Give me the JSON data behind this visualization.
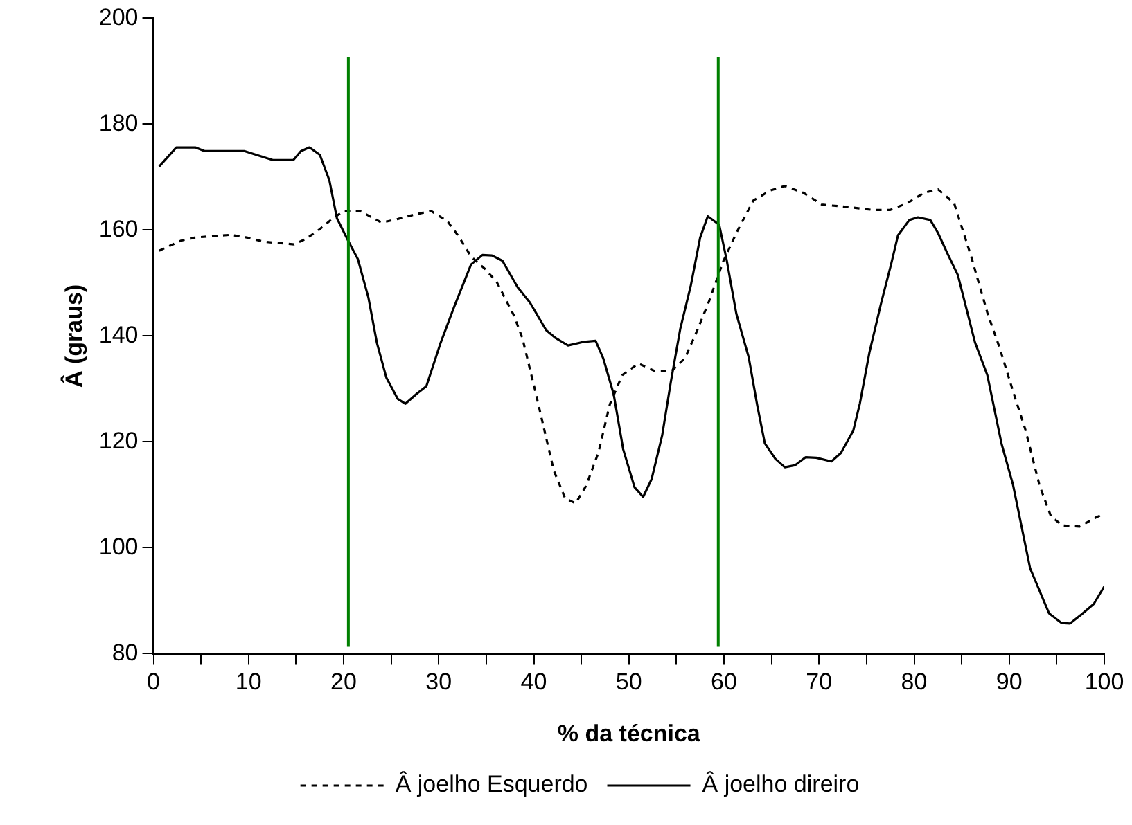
{
  "chart_data": {
    "type": "line",
    "xlabel": "% da técnica",
    "ylabel": "Â (graus)",
    "xlim": [
      0,
      100
    ],
    "ylim": [
      80,
      200
    ],
    "xticks": [
      0,
      {
        "value": 5,
        "label": null
      },
      10,
      {
        "value": 15,
        "label": null
      },
      20,
      {
        "value": 25,
        "label": null
      },
      30,
      {
        "value": 35,
        "label": null
      },
      40,
      {
        "value": 45,
        "label": null
      },
      50,
      {
        "value": 55,
        "label": null
      },
      60,
      {
        "value": 65,
        "label": null
      },
      70,
      {
        "value": 75,
        "label": null
      },
      80,
      {
        "value": 85,
        "label": null
      },
      90,
      {
        "value": 95,
        "label": null
      },
      100
    ],
    "yticks": [
      80,
      100,
      120,
      140,
      160,
      180,
      200
    ],
    "grid": false,
    "legend": "bottom",
    "marker": "none",
    "ref_lines": [
      {
        "axis": "x",
        "value": 20.5,
        "color": "#008000"
      },
      {
        "axis": "x",
        "value": 59.4,
        "color": "#008000"
      }
    ],
    "series": [
      {
        "name": "Â joelho Esquerdo",
        "color": "#000000",
        "line_style": "dashed",
        "x": [
          0.6,
          2.9,
          4.4,
          8.1,
          9.8,
          11.6,
          14.8,
          16,
          17.3,
          18.8,
          20,
          21.7,
          24,
          25.7,
          27.4,
          29.2,
          30.9,
          32.1,
          33.4,
          34.9,
          36.1,
          37.9,
          38.8,
          40.1,
          41.1,
          42.1,
          43.3,
          44.4,
          45.5,
          46.8,
          48,
          49.3,
          51,
          52.7,
          54.5,
          55.9,
          57.2,
          58.4,
          59.9,
          61.4,
          63.1,
          64.9,
          66.4,
          68.4,
          70.3,
          72.8,
          75.6,
          77.5,
          79.3,
          81,
          82.5,
          84.2,
          86,
          87.7,
          89,
          90.5,
          91.7,
          93.2,
          94.4,
          95.6,
          97.4,
          99.1,
          99.6
        ],
        "values": [
          156.1,
          158,
          158.6,
          159.1,
          158.6,
          157.8,
          157.3,
          158.3,
          159.9,
          162.1,
          163.6,
          163.6,
          161.4,
          162.1,
          162.9,
          163.6,
          161.7,
          158.8,
          155,
          152.6,
          150.2,
          143.9,
          139.6,
          130,
          122.3,
          114.6,
          109.3,
          108.4,
          111.7,
          118,
          127.1,
          132.6,
          134.8,
          133.4,
          133.4,
          135.8,
          141.1,
          146.4,
          154,
          159.8,
          165.6,
          167.5,
          168.3,
          167,
          164.8,
          164.4,
          163.8,
          163.8,
          165.1,
          167,
          167.7,
          165.1,
          155,
          144.4,
          137.7,
          129,
          122.3,
          111.7,
          105.9,
          104.2,
          104,
          105.7,
          106.1
        ]
      },
      {
        "name": "Â joelho direiro",
        "color": "#000000",
        "line_style": "solid",
        "x": [
          0.6,
          2.4,
          4.4,
          5.4,
          9.6,
          12.6,
          14.7,
          15.5,
          16.4,
          17.5,
          18.5,
          19.3,
          20.5,
          21.5,
          22.6,
          23.5,
          24.5,
          25.7,
          26.5,
          27.7,
          28.7,
          30.2,
          31.6,
          33.4,
          34.6,
          35.6,
          36.7,
          38.3,
          39.6,
          41.3,
          42.3,
          43.6,
          45.3,
          46.5,
          47.3,
          48.4,
          49.4,
          50.6,
          51.5,
          52.4,
          53.5,
          54.4,
          55.4,
          56.5,
          57.5,
          58.3,
          59.5,
          60.3,
          61.3,
          62.6,
          63.5,
          64.3,
          65.4,
          66.4,
          67.5,
          68.6,
          69.7,
          71.3,
          72.3,
          73.6,
          74.3,
          75.3,
          76.5,
          77.6,
          78.3,
          79.5,
          80.4,
          81.7,
          82.5,
          83.5,
          84.6,
          86.4,
          87.7,
          89.2,
          90.4,
          92.2,
          94.2,
          95.5,
          96.4,
          97.6,
          98.9,
          100
        ],
        "values": [
          172,
          175.6,
          175.6,
          174.9,
          174.9,
          173.2,
          173.2,
          174.9,
          175.6,
          174.2,
          169.4,
          162.2,
          157.9,
          154.5,
          147.3,
          138.7,
          132.1,
          128.1,
          127.2,
          129.1,
          130.5,
          138.7,
          145.4,
          153.5,
          155.3,
          155.2,
          154.2,
          149.2,
          146.3,
          141.1,
          139.6,
          138.2,
          138.9,
          139.1,
          135.8,
          129,
          118.6,
          111.4,
          109.6,
          113,
          121.2,
          131.2,
          141.3,
          149.4,
          158.6,
          162.6,
          161,
          154.2,
          144.2,
          136,
          126.9,
          119.7,
          116.8,
          115.2,
          115.6,
          117.1,
          117,
          116.3,
          117.9,
          122.1,
          127.3,
          136.9,
          146,
          153.7,
          159,
          161.9,
          162.4,
          161.9,
          159.5,
          155.6,
          151.5,
          138.8,
          132.6,
          119.6,
          111.9,
          96.1,
          87.6,
          85.8,
          85.7,
          87.4,
          89.4,
          92.7
        ]
      }
    ]
  }
}
